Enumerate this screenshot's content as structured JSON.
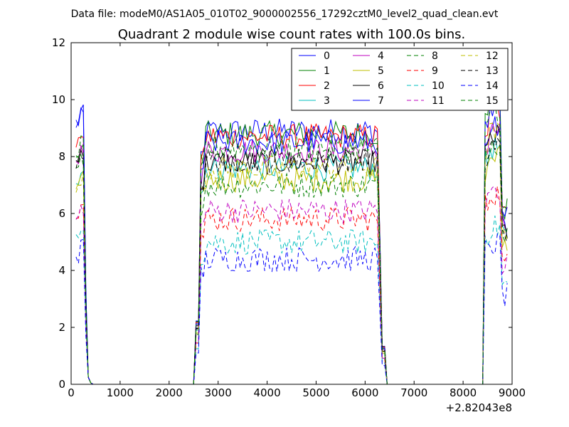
{
  "chart_data": {
    "type": "line",
    "suptitle": "Data file: modeM0/AS1A05_010T02_9000002556_17292cztM0_level2_quad_clean.evt",
    "title": "Quadrant 2 module wise count rates with 100.0s bins.",
    "xlabel": "",
    "ylabel": "",
    "x_offset_label": "+2.82043e8",
    "xlim": [
      0,
      9000
    ],
    "ylim": [
      0,
      12
    ],
    "xticks": [
      0,
      1000,
      2000,
      3000,
      4000,
      5000,
      6000,
      7000,
      8000,
      9000
    ],
    "yticks": [
      0,
      2,
      4,
      6,
      8,
      10,
      12
    ],
    "legend_position": "top-right",
    "legend_columns": 4,
    "series": [
      {
        "name": "0",
        "color": "#0000ff",
        "style": "solid",
        "base": 8.9,
        "spike": 9.6,
        "end": 9.3
      },
      {
        "name": "1",
        "color": "#008000",
        "style": "solid",
        "base": 8.8,
        "spike": 8.3,
        "end": 10.3
      },
      {
        "name": "2",
        "color": "#ff0000",
        "style": "solid",
        "base": 8.7,
        "spike": 8.8,
        "end": 9.9
      },
      {
        "name": "3",
        "color": "#00bfbf",
        "style": "solid",
        "base": 7.6,
        "spike": 7.6,
        "end": 8.6
      },
      {
        "name": "4",
        "color": "#bf00bf",
        "style": "solid",
        "base": 8.2,
        "spike": 8.3,
        "end": 9.2
      },
      {
        "name": "5",
        "color": "#bfbf00",
        "style": "solid",
        "base": 7.2,
        "spike": 7.3,
        "end": 8.3
      },
      {
        "name": "6",
        "color": "#000000",
        "style": "solid",
        "base": 7.8,
        "spike": 8.2,
        "end": 9.0
      },
      {
        "name": "7",
        "color": "#0000ff",
        "style": "solid",
        "base": 8.5,
        "spike": 9.5,
        "end": 9.8
      },
      {
        "name": "8",
        "color": "#008000",
        "style": "dashed",
        "base": 7.0,
        "spike": 7.9,
        "end": 8.8
      },
      {
        "name": "9",
        "color": "#ff0000",
        "style": "dashed",
        "base": 5.8,
        "spike": 6.5,
        "end": 7.0
      },
      {
        "name": "10",
        "color": "#00bfbf",
        "style": "dashed",
        "base": 5.0,
        "spike": 5.6,
        "end": 5.8
      },
      {
        "name": "11",
        "color": "#bf00bf",
        "style": "dashed",
        "base": 6.1,
        "spike": 6.2,
        "end": 7.1
      },
      {
        "name": "12",
        "color": "#bfbf00",
        "style": "dashed",
        "base": 7.6,
        "spike": 7.2,
        "end": 9.1
      },
      {
        "name": "13",
        "color": "#000000",
        "style": "dashed",
        "base": 7.9,
        "spike": 8.1,
        "end": 8.7
      },
      {
        "name": "14",
        "color": "#0000ff",
        "style": "dashed",
        "base": 4.4,
        "spike": 4.9,
        "end": 5.2
      },
      {
        "name": "15",
        "color": "#008000",
        "style": "dashed",
        "base": 8.3,
        "spike": 8.5,
        "end": 10.0
      }
    ]
  }
}
